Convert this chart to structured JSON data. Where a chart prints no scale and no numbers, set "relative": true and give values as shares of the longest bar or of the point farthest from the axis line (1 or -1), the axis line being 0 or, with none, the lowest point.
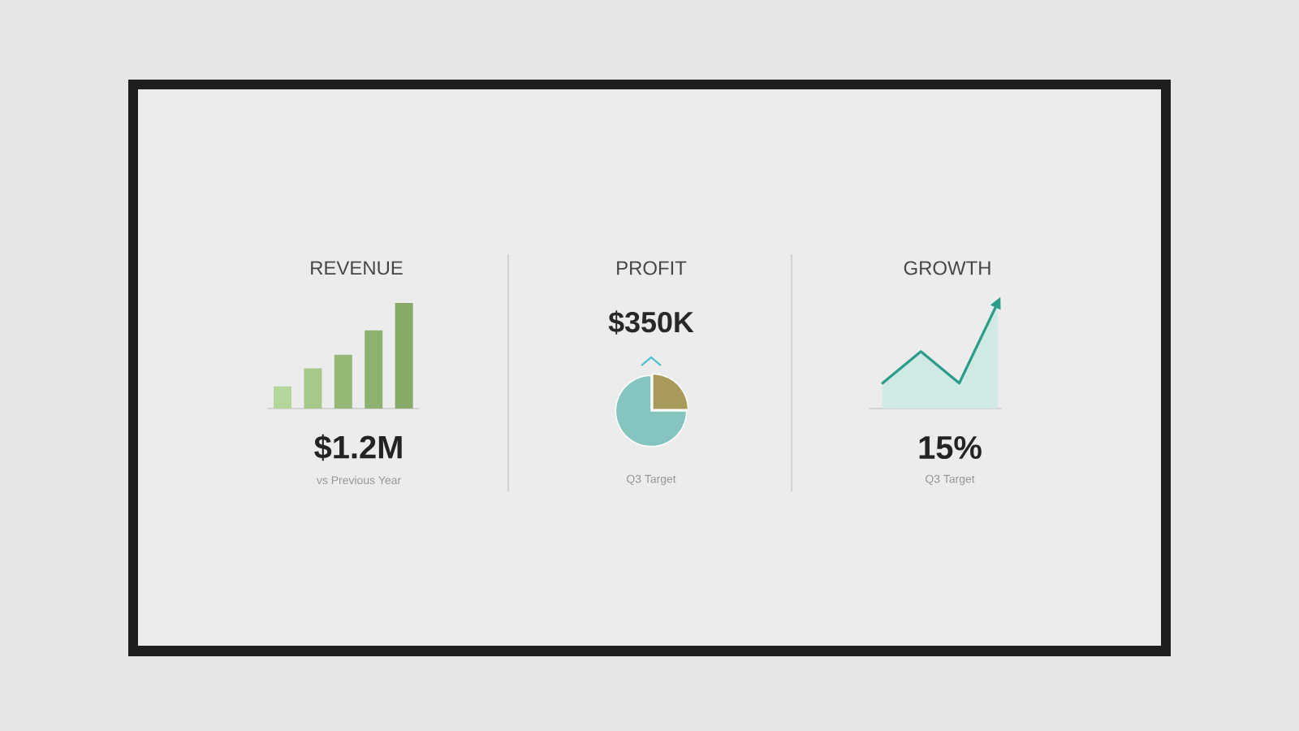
{
  "chart_data": [
    {
      "type": "bar",
      "title": "REVENUE",
      "relative": true,
      "categories": [
        null,
        null,
        null,
        null,
        null
      ],
      "values": [
        0.21,
        0.38,
        0.51,
        0.74,
        1
      ],
      "colors": [
        "#b5d69a",
        "#a6c98a",
        "#95b877",
        "#8db26f",
        "#86ab68"
      ],
      "annotations": [
        "$1.2M",
        "vs Previous Year"
      ]
    },
    {
      "type": "pie",
      "title": "PROFIT",
      "subtitle": "$350K",
      "categories": [
        null,
        null
      ],
      "values": [
        25,
        75
      ],
      "colors": [
        "#a89a58",
        "#86c4c0"
      ],
      "annotations": [
        "Q3 Target"
      ]
    },
    {
      "type": "area",
      "title": "GROWTH",
      "relative": true,
      "categories": [
        null,
        null,
        null,
        null
      ],
      "series": [
        {
          "color": "#2a9d8a",
          "values": [
            0.24,
            0.54,
            0.24,
            1
          ]
        }
      ],
      "annotations": [
        "15%",
        "Q3 Target"
      ]
    }
  ]
}
